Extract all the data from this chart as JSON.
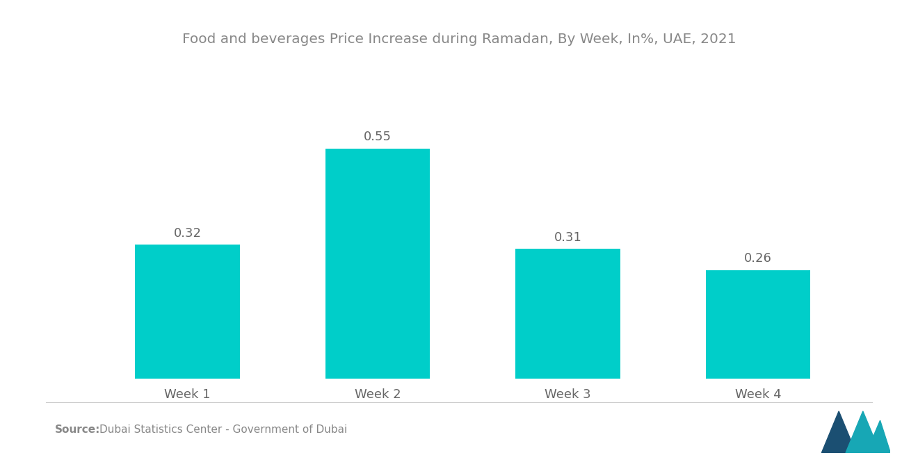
{
  "title": "Food and beverages Price Increase during Ramadan, By Week, In%, UAE, 2021",
  "categories": [
    "Week 1",
    "Week 2",
    "Week 3",
    "Week 4"
  ],
  "values": [
    0.32,
    0.55,
    0.31,
    0.26
  ],
  "bar_color": "#00CEC9",
  "title_color": "#888888",
  "label_color": "#666666",
  "source_bold": "Source:",
  "source_text": "  Dubai Statistics Center - Government of Dubai",
  "source_color": "#888888",
  "background_color": "#ffffff",
  "bar_width": 0.55,
  "ylim": [
    0,
    0.75
  ],
  "title_fontsize": 14.5,
  "tick_fontsize": 13,
  "value_fontsize": 13,
  "source_fontsize": 11
}
